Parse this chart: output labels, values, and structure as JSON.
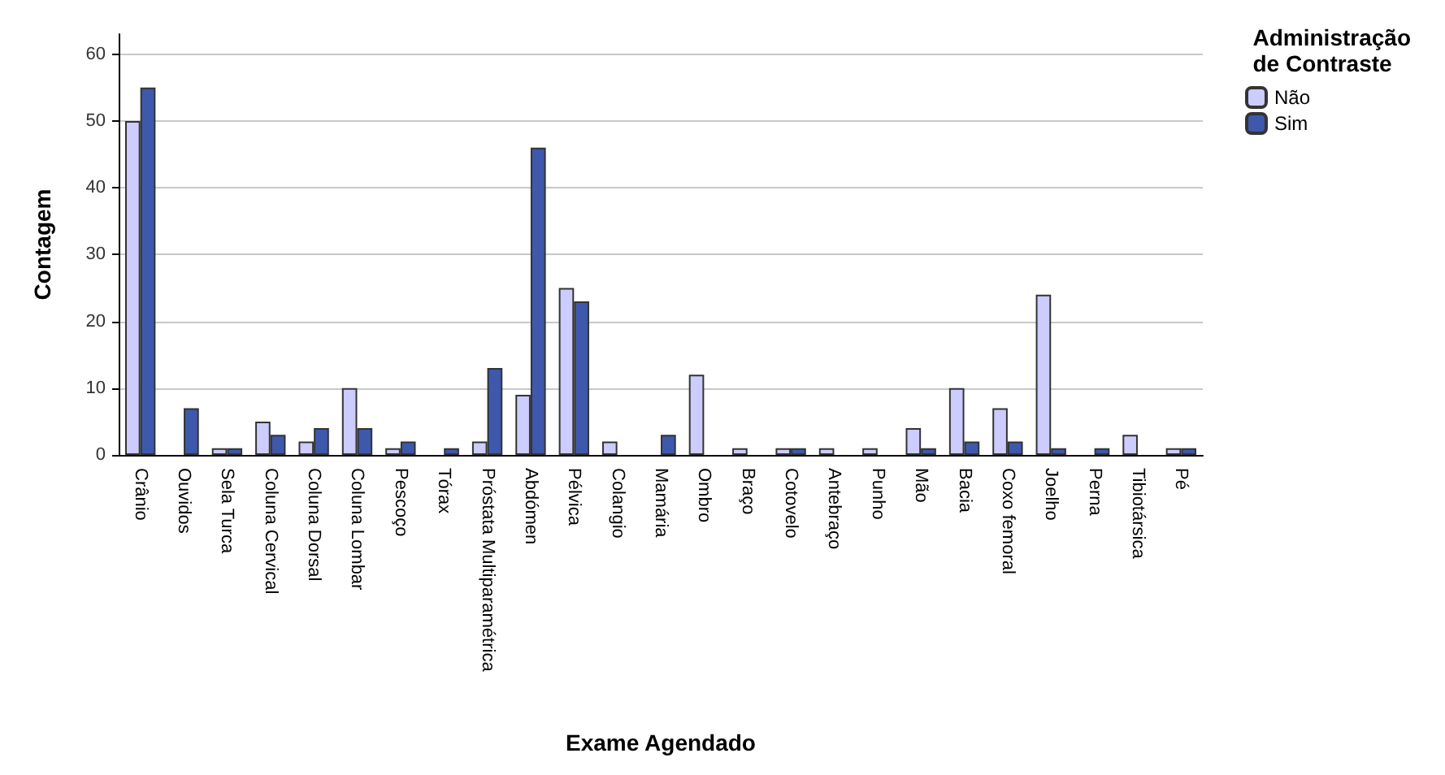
{
  "chart_data": {
    "type": "bar",
    "xlabel": "Exame Agendado",
    "ylabel": "Contagem",
    "legend_title": "Administração\nde Contraste",
    "categories": [
      "Crânio",
      "Ouvidos",
      "Sela Turca",
      "Coluna Cervical",
      "Coluna Dorsal",
      "Coluna Lombar",
      "Pescoço",
      "Tórax",
      "Próstata Multiparamétrica",
      "Abdómen",
      "Pélvica",
      "Colangio",
      "Mamária",
      "Ombro",
      "Braço",
      "Cotovelo",
      "Antebraço",
      "Punho",
      "Mão",
      "Bacia",
      "Coxo femoral",
      "Joelho",
      "Perna",
      "Tibiotársica",
      "Pé"
    ],
    "series": [
      {
        "name": "Não",
        "color": "#ccccff",
        "values": [
          50,
          null,
          1,
          5,
          2,
          10,
          1,
          null,
          2,
          9,
          25,
          2,
          null,
          12,
          1,
          1,
          1,
          1,
          4,
          10,
          7,
          24,
          null,
          3,
          1
        ]
      },
      {
        "name": "Sim",
        "color": "#3e58ac",
        "values": [
          55,
          7,
          1,
          3,
          4,
          4,
          2,
          1,
          13,
          46,
          23,
          null,
          3,
          null,
          null,
          1,
          null,
          null,
          1,
          2,
          2,
          1,
          1,
          null,
          1
        ]
      }
    ],
    "ylim": [
      0,
      63
    ],
    "yticks": [
      0,
      10,
      20,
      30,
      40,
      50,
      60
    ],
    "grid": "y",
    "legend": "top right"
  }
}
